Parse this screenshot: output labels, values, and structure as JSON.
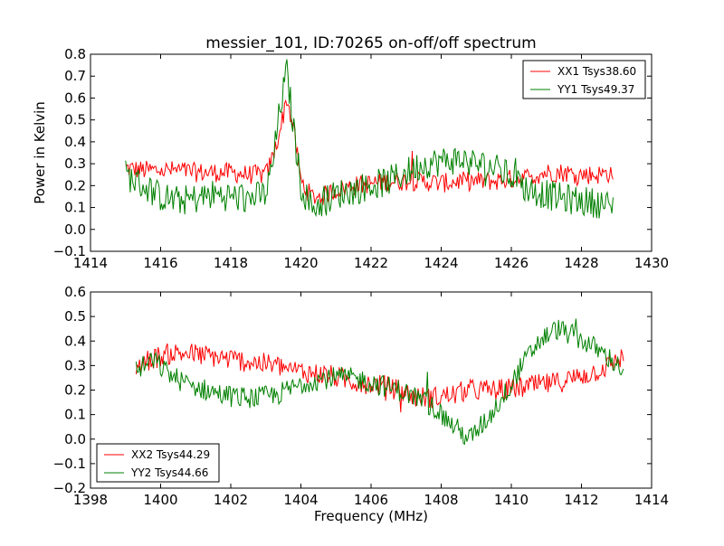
{
  "title": "messier_101, ID:70265 on-off/off spectrum",
  "colors": {
    "red": "#ff0000",
    "green": "#008000",
    "axis": "#000000",
    "background": "#ffffff"
  },
  "chart_data": [
    {
      "type": "line",
      "panel": "top",
      "title": "messier_101, ID:70265 on-off/off spectrum",
      "xlabel": "",
      "ylabel": "Power in Kelvin",
      "xlim": [
        1414,
        1430
      ],
      "ylim": [
        -0.1,
        0.8
      ],
      "xticks": [
        1414,
        1416,
        1418,
        1420,
        1422,
        1424,
        1426,
        1428,
        1430
      ],
      "yticks": [
        -0.1,
        0.0,
        0.1,
        0.2,
        0.3,
        0.4,
        0.5,
        0.6,
        0.7,
        0.8
      ],
      "xtick_labels": [
        "1414",
        "1416",
        "1418",
        "1420",
        "1422",
        "1424",
        "1426",
        "1428",
        "1430"
      ],
      "ytick_labels": [
        "−0.1",
        "0.0",
        "0.1",
        "0.2",
        "0.3",
        "0.4",
        "0.5",
        "0.6",
        "0.7",
        "0.8"
      ],
      "legend_position": "top-right",
      "grid": false,
      "series": [
        {
          "name": "XX1 Tsys38.60",
          "color": "#ff0000",
          "x": [
            1415.0,
            1415.5,
            1416.0,
            1416.5,
            1417.0,
            1417.5,
            1418.0,
            1418.5,
            1419.0,
            1419.2,
            1419.4,
            1419.6,
            1419.8,
            1420.0,
            1420.3,
            1420.6,
            1421.0,
            1421.5,
            1422.0,
            1422.5,
            1423.0,
            1423.5,
            1424.0,
            1424.5,
            1425.0,
            1425.5,
            1426.0,
            1426.5,
            1427.0,
            1427.5,
            1428.0,
            1428.5,
            1428.9
          ],
          "values": [
            0.28,
            0.27,
            0.27,
            0.27,
            0.26,
            0.26,
            0.26,
            0.25,
            0.25,
            0.33,
            0.45,
            0.6,
            0.45,
            0.22,
            0.15,
            0.15,
            0.18,
            0.2,
            0.21,
            0.22,
            0.22,
            0.22,
            0.21,
            0.22,
            0.22,
            0.22,
            0.23,
            0.24,
            0.26,
            0.26,
            0.25,
            0.25,
            0.26
          ]
        },
        {
          "name": "YY1 Tsys49.37",
          "color": "#008000",
          "x": [
            1415.0,
            1415.5,
            1416.0,
            1416.5,
            1417.0,
            1417.5,
            1418.0,
            1418.5,
            1419.0,
            1419.2,
            1419.4,
            1419.6,
            1419.8,
            1420.0,
            1420.3,
            1420.6,
            1421.0,
            1421.5,
            1422.0,
            1422.5,
            1423.0,
            1423.5,
            1424.0,
            1424.5,
            1425.0,
            1425.5,
            1426.0,
            1426.5,
            1427.0,
            1427.5,
            1428.0,
            1428.5,
            1428.9
          ],
          "values": [
            0.25,
            0.2,
            0.15,
            0.13,
            0.14,
            0.16,
            0.15,
            0.14,
            0.16,
            0.3,
            0.55,
            0.72,
            0.45,
            0.2,
            0.1,
            0.12,
            0.16,
            0.18,
            0.2,
            0.22,
            0.26,
            0.3,
            0.31,
            0.32,
            0.3,
            0.28,
            0.24,
            0.18,
            0.16,
            0.14,
            0.13,
            0.12,
            0.1
          ]
        }
      ]
    },
    {
      "type": "line",
      "panel": "bottom",
      "title": "",
      "xlabel": "Frequency (MHz)",
      "ylabel": "",
      "xlim": [
        1398,
        1414
      ],
      "ylim": [
        -0.2,
        0.6
      ],
      "xticks": [
        1398,
        1400,
        1402,
        1404,
        1406,
        1408,
        1410,
        1412,
        1414
      ],
      "yticks": [
        -0.2,
        -0.1,
        0.0,
        0.1,
        0.2,
        0.3,
        0.4,
        0.5,
        0.6
      ],
      "xtick_labels": [
        "1398",
        "1400",
        "1402",
        "1404",
        "1406",
        "1408",
        "1410",
        "1412",
        "1414"
      ],
      "ytick_labels": [
        "−0.2",
        "−0.1",
        "0.0",
        "0.1",
        "0.2",
        "0.3",
        "0.4",
        "0.5",
        "0.6"
      ],
      "legend_position": "bottom-left",
      "grid": false,
      "series": [
        {
          "name": "XX2 Tsys44.29",
          "color": "#ff0000",
          "x": [
            1399.3,
            1399.8,
            1400.3,
            1400.8,
            1401.3,
            1401.8,
            1402.3,
            1402.8,
            1403.3,
            1403.8,
            1404.3,
            1404.8,
            1405.3,
            1405.8,
            1406.3,
            1406.8,
            1407.3,
            1407.8,
            1408.3,
            1408.8,
            1409.3,
            1409.8,
            1410.3,
            1410.8,
            1411.3,
            1411.8,
            1412.3,
            1412.8,
            1413.2
          ],
          "values": [
            0.3,
            0.33,
            0.35,
            0.35,
            0.34,
            0.33,
            0.32,
            0.31,
            0.3,
            0.28,
            0.27,
            0.26,
            0.24,
            0.23,
            0.22,
            0.2,
            0.17,
            0.17,
            0.18,
            0.2,
            0.2,
            0.2,
            0.21,
            0.22,
            0.23,
            0.25,
            0.27,
            0.3,
            0.34
          ]
        },
        {
          "name": "YY2 Tsys44.66",
          "color": "#008000",
          "x": [
            1399.3,
            1399.8,
            1400.3,
            1400.8,
            1401.3,
            1401.8,
            1402.3,
            1402.8,
            1403.3,
            1403.8,
            1404.3,
            1404.8,
            1405.3,
            1405.8,
            1406.3,
            1406.8,
            1407.3,
            1407.8,
            1408.3,
            1408.8,
            1409.3,
            1409.8,
            1410.3,
            1410.8,
            1411.3,
            1411.8,
            1412.3,
            1412.8,
            1413.2
          ],
          "values": [
            0.28,
            0.32,
            0.26,
            0.22,
            0.2,
            0.18,
            0.17,
            0.17,
            0.18,
            0.21,
            0.24,
            0.25,
            0.25,
            0.24,
            0.22,
            0.2,
            0.17,
            0.13,
            0.06,
            0.0,
            0.08,
            0.18,
            0.3,
            0.4,
            0.45,
            0.42,
            0.38,
            0.33,
            0.28
          ]
        }
      ]
    }
  ]
}
